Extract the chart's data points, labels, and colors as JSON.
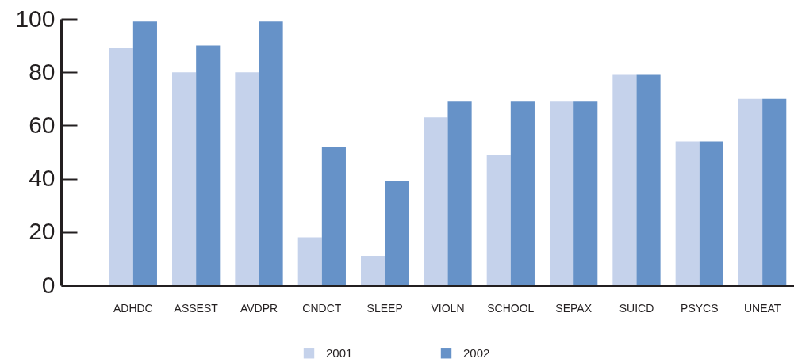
{
  "chart_data": {
    "type": "bar",
    "categories": [
      "ADHDC",
      "ASSEST",
      "AVDPR",
      "CNDCT",
      "SLEEP",
      "VIOLN",
      "SCHOOL",
      "SEPAX",
      "SUICD",
      "PSYCS",
      "UNEAT"
    ],
    "series": [
      {
        "name": "2001",
        "color": "#c5d2eb",
        "values": [
          89,
          80,
          80,
          18,
          11,
          63,
          49,
          69,
          79,
          54,
          70
        ]
      },
      {
        "name": "2002",
        "color": "#6692c8",
        "values": [
          99,
          90,
          99,
          52,
          39,
          69,
          69,
          69,
          79,
          54,
          70
        ]
      }
    ],
    "ylim": [
      0,
      100
    ],
    "yticks": [
      0,
      20,
      40,
      60,
      80,
      100
    ],
    "grid": false,
    "legend": "bottom"
  }
}
